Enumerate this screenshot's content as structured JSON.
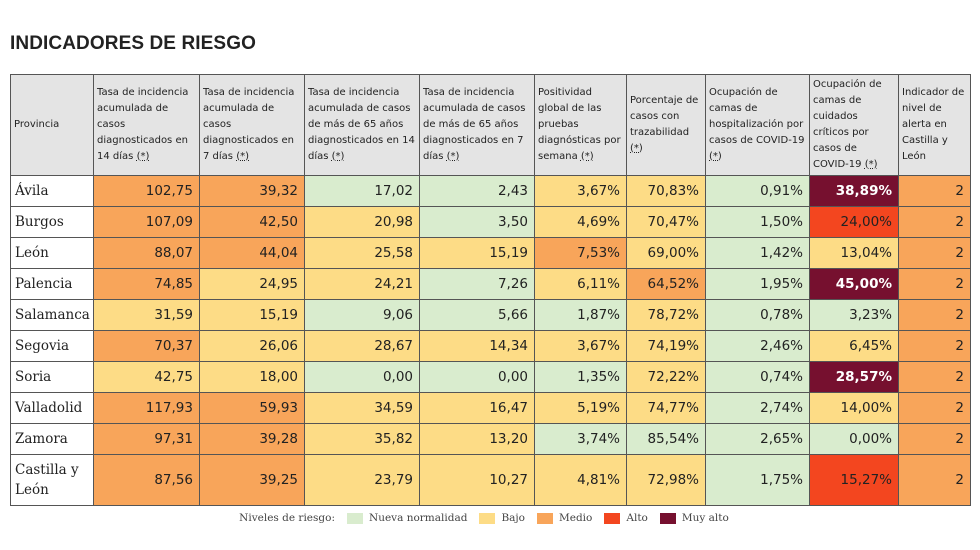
{
  "title": "INDICADORES DE RIESGO",
  "table": {
    "headers": [
      {
        "text": "Provincia",
        "note": ""
      },
      {
        "text": "Tasa de incidencia acumulada de casos diagnosticados en 14 días",
        "note": "(*)"
      },
      {
        "text": "Tasa de incidencia acumulada de casos diagnosticados en 7 días",
        "note": "(*)"
      },
      {
        "text": "Tasa de incidencia acumulada de casos de más de 65 años diagnosticados en 14 días",
        "note": "(*)"
      },
      {
        "text": "Tasa de incidencia acumulada de casos de más de 65 años diagnosticados en 7 días",
        "note": "(*)"
      },
      {
        "text": "Positividad global de las pruebas diagnósticas por semana",
        "note": "(*)"
      },
      {
        "text": "Porcentaje de casos con trazabilidad",
        "note": "(*)"
      },
      {
        "text": "Ocupación de camas de hospitalización por casos de COVID-19",
        "note": "(*)"
      },
      {
        "text": "Ocupación de camas de cuidados críticos por casos de COVID-19",
        "note": "(*)"
      },
      {
        "text": "Indicador de nivel de alerta en Castilla y León",
        "note": ""
      }
    ],
    "rows": [
      {
        "provincia": "Ávila",
        "values": [
          "102,75",
          "39,32",
          "17,02",
          "2,43",
          "3,67%",
          "70,83%",
          "0,91%",
          "38,89%",
          "2"
        ],
        "levels": [
          2,
          2,
          0,
          0,
          1,
          1,
          0,
          4,
          2
        ]
      },
      {
        "provincia": "Burgos",
        "values": [
          "107,09",
          "42,50",
          "20,98",
          "3,50",
          "4,69%",
          "70,47%",
          "1,50%",
          "24,00%",
          "2"
        ],
        "levels": [
          2,
          2,
          1,
          0,
          1,
          1,
          0,
          3,
          2
        ]
      },
      {
        "provincia": "León",
        "values": [
          "88,07",
          "44,04",
          "25,58",
          "15,19",
          "7,53%",
          "69,00%",
          "1,42%",
          "13,04%",
          "2"
        ],
        "levels": [
          2,
          2,
          1,
          1,
          2,
          1,
          0,
          1,
          2
        ]
      },
      {
        "provincia": "Palencia",
        "values": [
          "74,85",
          "24,95",
          "24,21",
          "7,26",
          "6,11%",
          "64,52%",
          "1,95%",
          "45,00%",
          "2"
        ],
        "levels": [
          2,
          1,
          1,
          0,
          1,
          2,
          0,
          4,
          2
        ]
      },
      {
        "provincia": "Salamanca",
        "values": [
          "31,59",
          "15,19",
          "9,06",
          "5,66",
          "1,87%",
          "78,72%",
          "0,78%",
          "3,23%",
          "2"
        ],
        "levels": [
          1,
          1,
          0,
          0,
          0,
          1,
          0,
          0,
          2
        ]
      },
      {
        "provincia": "Segovia",
        "values": [
          "70,37",
          "26,06",
          "28,67",
          "14,34",
          "3,67%",
          "74,19%",
          "2,46%",
          "6,45%",
          "2"
        ],
        "levels": [
          2,
          1,
          1,
          1,
          1,
          1,
          0,
          1,
          2
        ]
      },
      {
        "provincia": "Soria",
        "values": [
          "42,75",
          "18,00",
          "0,00",
          "0,00",
          "1,35%",
          "72,22%",
          "0,74%",
          "28,57%",
          "2"
        ],
        "levels": [
          1,
          1,
          0,
          0,
          0,
          1,
          0,
          4,
          2
        ]
      },
      {
        "provincia": "Valladolid",
        "values": [
          "117,93",
          "59,93",
          "34,59",
          "16,47",
          "5,19%",
          "74,77%",
          "2,74%",
          "14,00%",
          "2"
        ],
        "levels": [
          2,
          2,
          1,
          1,
          1,
          1,
          0,
          1,
          2
        ]
      },
      {
        "provincia": "Zamora",
        "values": [
          "97,31",
          "39,28",
          "35,82",
          "13,20",
          "3,74%",
          "85,54%",
          "2,65%",
          "0,00%",
          "2"
        ],
        "levels": [
          2,
          2,
          1,
          1,
          0,
          0,
          0,
          0,
          2
        ]
      },
      {
        "provincia": "Castilla y León",
        "values": [
          "87,56",
          "39,25",
          "23,79",
          "10,27",
          "4,81%",
          "72,98%",
          "1,75%",
          "15,27%",
          "2"
        ],
        "levels": [
          2,
          2,
          1,
          1,
          1,
          1,
          0,
          3,
          2
        ]
      }
    ]
  },
  "legend": {
    "title": "Niveles de riesgo:",
    "items": [
      {
        "label": "Nueva normalidad",
        "color": "#d9ecce"
      },
      {
        "label": "Bajo",
        "color": "#fddc86"
      },
      {
        "label": "Medio",
        "color": "#f8a55a"
      },
      {
        "label": "Alto",
        "color": "#f3461f"
      },
      {
        "label": "Muy alto",
        "color": "#76102f"
      }
    ]
  }
}
